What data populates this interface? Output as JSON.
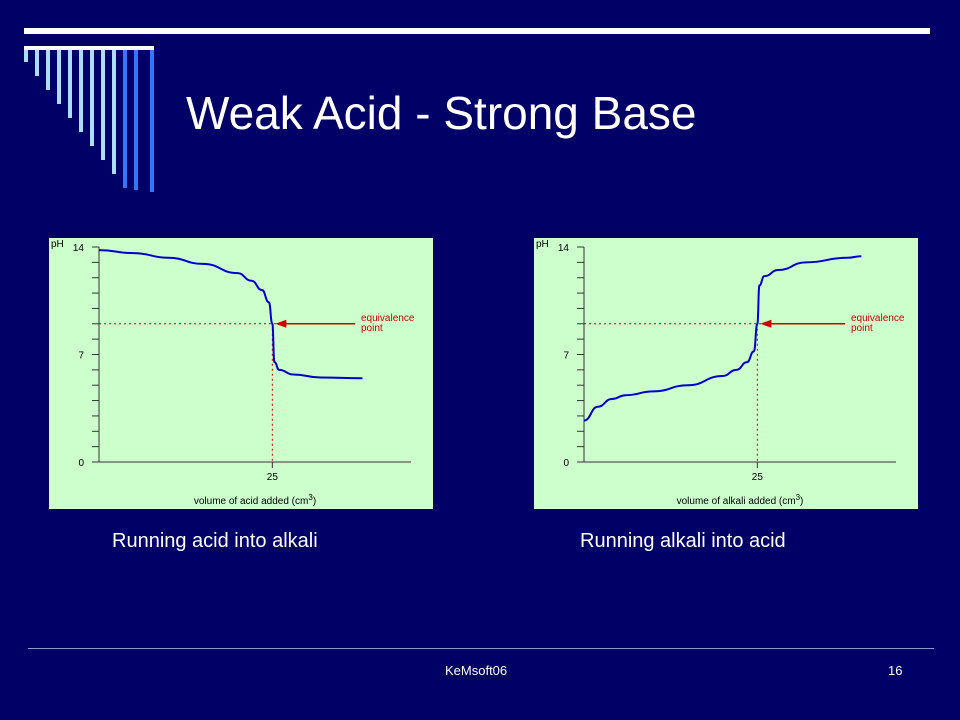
{
  "slide": {
    "title": "Weak Acid - Strong Base",
    "footer": "KeMsoft06",
    "page_number": "16"
  },
  "captions": [
    "Running acid into alkali",
    "Running alkali into acid"
  ],
  "colors": {
    "background": "#000066",
    "chart_background": "#ccffcc",
    "curve": "#0000cc",
    "guide": "#cc0000",
    "deco_light": "#aaddff",
    "deco_blue": "#3377ff"
  },
  "chart_data": [
    {
      "type": "line",
      "ylabel": "pH",
      "xlabel": "volume of acid added (cm3)",
      "yticks": [
        "0",
        "7",
        "14"
      ],
      "xticks": [
        "25"
      ],
      "ylim": [
        0,
        14
      ],
      "xlim": [
        0,
        45
      ],
      "annotation": "equivalence\npoint",
      "equivalence": {
        "x": 25,
        "y": 9
      },
      "series": [
        {
          "x": [
            0,
            5,
            10,
            15,
            20,
            22,
            23.5,
            24.5,
            25,
            25.3,
            26,
            28,
            32,
            38
          ],
          "y": [
            13.8,
            13.6,
            13.3,
            12.9,
            12.3,
            11.8,
            11.2,
            10.4,
            9,
            6.5,
            6,
            5.7,
            5.5,
            5.45
          ]
        }
      ]
    },
    {
      "type": "line",
      "ylabel": "pH",
      "xlabel": "volume of alkali added (cm3)",
      "yticks": [
        "0",
        "7",
        "14"
      ],
      "xticks": [
        "25"
      ],
      "ylim": [
        0,
        14
      ],
      "xlim": [
        0,
        45
      ],
      "annotation": "equivalence\npoint",
      "equivalence": {
        "x": 25,
        "y": 9
      },
      "series": [
        {
          "x": [
            0,
            2,
            4,
            6,
            10,
            15,
            20,
            22,
            23.5,
            24.5,
            25,
            25.3,
            26,
            28,
            32,
            38,
            40
          ],
          "y": [
            2.7,
            3.6,
            4.1,
            4.35,
            4.6,
            5,
            5.6,
            6,
            6.5,
            7.2,
            9,
            11.5,
            12.1,
            12.5,
            13,
            13.3,
            13.4
          ]
        }
      ]
    }
  ]
}
